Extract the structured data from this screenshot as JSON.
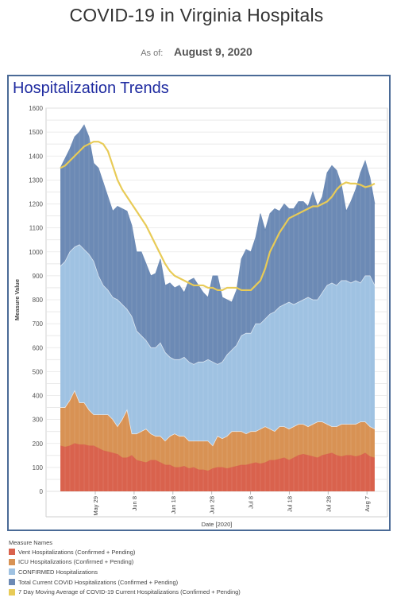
{
  "header": {
    "title": "COVID-19 in Virginia Hospitals",
    "asof_label": "As of:",
    "asof_date": "August 9, 2020"
  },
  "panel": {
    "title": "Hospitalization Trends"
  },
  "legend": {
    "title": "Measure Names",
    "items": [
      {
        "label": "Vent Hospitalizations (Confirmed + Pending)",
        "color": "#d9624d"
      },
      {
        "label": "ICU Hospitalizations (Confirmed + Pending)",
        "color": "#d89254"
      },
      {
        "label": "CONFIRMED Hospitalizations",
        "color": "#9fc2e2"
      },
      {
        "label": "Total Current COVID Hospitalizations (Confirmed + Pending)",
        "color": "#6c8ab5"
      },
      {
        "label": "7 Day Moving Average of COVID-19 Current Hospitalizations (Confirmed + Pending)",
        "color": "#e8cb57"
      }
    ]
  },
  "chart_data": {
    "type": "area",
    "title": "Hospitalization Trends",
    "xlabel": "Date [2020]",
    "ylabel": "Measure Value",
    "ylim": [
      0,
      1600
    ],
    "yticks": [
      0,
      50,
      100,
      150,
      200,
      250,
      300,
      350,
      400,
      450,
      500,
      550,
      600,
      650,
      700,
      750,
      800,
      850,
      900,
      950,
      1000,
      1050,
      1100,
      1150,
      1200,
      1250,
      1300,
      1350,
      1400,
      1450,
      1500,
      1550,
      1600
    ],
    "x_start": "2020-05-20",
    "x_end": "2020-08-09",
    "xticks": [
      {
        "label": "May 29",
        "date": "2020-05-29"
      },
      {
        "label": "Jun 8",
        "date": "2020-06-08"
      },
      {
        "label": "Jun 18",
        "date": "2020-06-18"
      },
      {
        "label": "Jun 28",
        "date": "2020-06-28"
      },
      {
        "label": "Jul 8",
        "date": "2020-07-08"
      },
      {
        "label": "Jul 18",
        "date": "2020-07-18"
      },
      {
        "label": "Jul 28",
        "date": "2020-07-28"
      },
      {
        "label": "Aug 7",
        "date": "2020-08-07"
      }
    ],
    "grid": true,
    "legend_position": "bottom-left",
    "series": [
      {
        "name": "Total Current COVID Hospitalizations (Confirmed + Pending)",
        "color": "#6c8ab5",
        "values": [
          1350,
          1390,
          1430,
          1480,
          1500,
          1530,
          1480,
          1370,
          1350,
          1290,
          1230,
          1170,
          1190,
          1180,
          1170,
          1110,
          1000,
          1000,
          950,
          900,
          910,
          970,
          860,
          870,
          850,
          860,
          830,
          880,
          890,
          860,
          830,
          810,
          900,
          900,
          810,
          800,
          790,
          840,
          970,
          1010,
          1000,
          1060,
          1160,
          1090,
          1160,
          1180,
          1170,
          1200,
          1180,
          1180,
          1210,
          1210,
          1190,
          1250,
          1190,
          1230,
          1330,
          1360,
          1340,
          1280,
          1170,
          1210,
          1260,
          1330,
          1380,
          1310,
          1200
        ]
      },
      {
        "name": "CONFIRMED Hospitalizations",
        "color": "#9fc2e2",
        "values": [
          940,
          960,
          1000,
          1020,
          1030,
          1010,
          990,
          960,
          900,
          860,
          840,
          810,
          800,
          780,
          760,
          730,
          670,
          650,
          630,
          600,
          600,
          620,
          580,
          560,
          550,
          550,
          560,
          540,
          530,
          540,
          540,
          550,
          540,
          530,
          540,
          570,
          590,
          610,
          650,
          660,
          660,
          700,
          700,
          720,
          740,
          750,
          770,
          780,
          790,
          780,
          790,
          800,
          810,
          800,
          800,
          830,
          860,
          870,
          860,
          880,
          880,
          870,
          880,
          870,
          900,
          900,
          860
        ]
      },
      {
        "name": "ICU Hospitalizations (Confirmed + Pending)",
        "color": "#d89254",
        "values": [
          350,
          350,
          380,
          420,
          370,
          370,
          340,
          320,
          320,
          320,
          320,
          300,
          270,
          300,
          340,
          240,
          240,
          250,
          260,
          240,
          230,
          230,
          210,
          230,
          240,
          230,
          230,
          210,
          210,
          210,
          210,
          210,
          190,
          230,
          220,
          230,
          250,
          250,
          250,
          240,
          250,
          250,
          260,
          270,
          260,
          250,
          270,
          270,
          260,
          270,
          280,
          280,
          270,
          280,
          290,
          290,
          280,
          270,
          270,
          280,
          280,
          280,
          280,
          290,
          290,
          270,
          260
        ]
      },
      {
        "name": "Vent Hospitalizations (Confirmed + Pending)",
        "color": "#d9624d",
        "values": [
          190,
          185,
          190,
          200,
          195,
          195,
          190,
          190,
          180,
          170,
          165,
          160,
          155,
          140,
          140,
          150,
          130,
          125,
          120,
          130,
          130,
          120,
          110,
          110,
          100,
          100,
          105,
          95,
          100,
          90,
          90,
          85,
          95,
          100,
          100,
          95,
          100,
          105,
          110,
          110,
          115,
          120,
          115,
          120,
          130,
          130,
          135,
          140,
          130,
          140,
          150,
          155,
          150,
          145,
          140,
          150,
          155,
          160,
          150,
          145,
          150,
          150,
          145,
          150,
          160,
          145,
          140
        ]
      },
      {
        "name": "7 Day Moving Average of COVID-19 Current Hospitalizations (Confirmed + Pending)",
        "color": "#e8cb57",
        "values": [
          1350,
          1360,
          1380,
          1400,
          1420,
          1440,
          1450,
          1460,
          1460,
          1450,
          1420,
          1360,
          1300,
          1260,
          1230,
          1200,
          1170,
          1140,
          1110,
          1070,
          1030,
          990,
          950,
          920,
          900,
          890,
          880,
          870,
          860,
          860,
          860,
          850,
          850,
          840,
          840,
          850,
          850,
          850,
          840,
          840,
          840,
          860,
          880,
          930,
          1000,
          1040,
          1080,
          1110,
          1140,
          1150,
          1160,
          1170,
          1180,
          1190,
          1190,
          1200,
          1210,
          1230,
          1260,
          1280,
          1290,
          1285,
          1285,
          1280,
          1270,
          1275,
          1285
        ]
      }
    ]
  }
}
